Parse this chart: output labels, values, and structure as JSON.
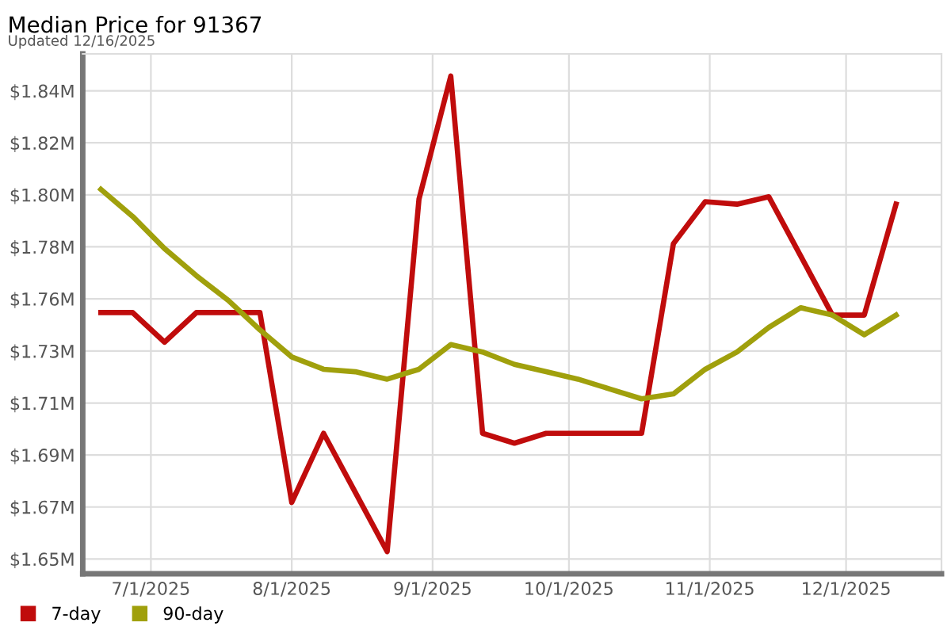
{
  "chart_data": {
    "type": "line",
    "title": "Median Price for 91367",
    "subtitle": "Updated 12/16/2025",
    "x": [
      "2025-06-20",
      "2025-06-27",
      "2025-07-04",
      "2025-07-11",
      "2025-07-18",
      "2025-07-25",
      "2025-08-01",
      "2025-08-08",
      "2025-08-15",
      "2025-08-22",
      "2025-08-29",
      "2025-09-05",
      "2025-09-12",
      "2025-09-19",
      "2025-09-26",
      "2025-10-03",
      "2025-10-10",
      "2025-10-17",
      "2025-10-24",
      "2025-10-31",
      "2025-11-07",
      "2025-11-14",
      "2025-11-21",
      "2025-11-28",
      "2025-12-05",
      "2025-12-12"
    ],
    "series": [
      {
        "name": "7-day",
        "color": "#c00c0c",
        "values": [
          1.75,
          1.75,
          1.738,
          1.75,
          1.75,
          1.75,
          1.673,
          1.701,
          1.677,
          1.653,
          1.796,
          1.846,
          1.701,
          1.697,
          1.701,
          1.701,
          1.701,
          1.701,
          1.778,
          1.795,
          1.794,
          1.797,
          1.773,
          1.749,
          1.749,
          1.794
        ]
      },
      {
        "name": "90-day",
        "color": "#a0a00c",
        "values": [
          1.8,
          1.789,
          1.776,
          1.765,
          1.755,
          1.743,
          1.732,
          1.727,
          1.726,
          1.723,
          1.727,
          1.737,
          1.734,
          1.729,
          1.726,
          1.723,
          1.719,
          1.715,
          1.717,
          1.727,
          1.734,
          1.744,
          1.752,
          1.749,
          1.741,
          1.749
        ]
      }
    ],
    "xlim": [
      "2025-06-16",
      "2025-12-22"
    ],
    "xticks": [
      {
        "value": "2025-07-01",
        "label": "7/1/2025"
      },
      {
        "value": "2025-08-01",
        "label": "8/1/2025"
      },
      {
        "value": "2025-09-01",
        "label": "9/1/2025"
      },
      {
        "value": "2025-10-01",
        "label": "10/1/2025"
      },
      {
        "value": "2025-11-01",
        "label": "11/1/2025"
      },
      {
        "value": "2025-12-01",
        "label": "12/1/2025"
      }
    ],
    "ylim": [
      1.644,
      1.855
    ],
    "yticks": [
      {
        "value": 1.65,
        "label": "$1.65M"
      },
      {
        "value": 1.6711,
        "label": "$1.67M"
      },
      {
        "value": 1.6922,
        "label": "$1.69M"
      },
      {
        "value": 1.7133,
        "label": "$1.71M"
      },
      {
        "value": 1.7344,
        "label": "$1.73M"
      },
      {
        "value": 1.7556,
        "label": "$1.76M"
      },
      {
        "value": 1.7767,
        "label": "$1.78M"
      },
      {
        "value": 1.7978,
        "label": "$1.80M"
      },
      {
        "value": 1.8189,
        "label": "$1.82M"
      },
      {
        "value": 1.84,
        "label": "$1.84M"
      }
    ],
    "grid": true,
    "legend": "bottom left",
    "marker": "none",
    "line_style": "solid"
  }
}
